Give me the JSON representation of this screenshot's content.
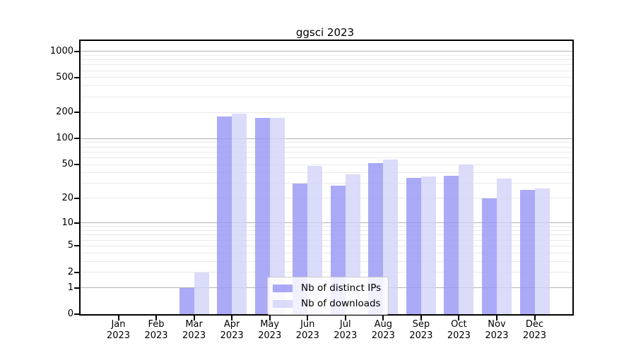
{
  "chart_data": {
    "type": "bar",
    "title": "ggsci 2023",
    "categories": [
      "Jan",
      "Feb",
      "Mar",
      "Apr",
      "May",
      "Jun",
      "Jul",
      "Aug",
      "Sep",
      "Oct",
      "Nov",
      "Dec"
    ],
    "x_tick_year": "2023",
    "series": [
      {
        "name": "Nb of distinct IPs",
        "color": "#9595f5",
        "values": [
          0,
          0,
          1,
          180,
          172,
          30,
          28,
          52,
          35,
          37,
          20,
          25
        ]
      },
      {
        "name": "Nb of downloads",
        "color": "#d2d2f9",
        "values": [
          0,
          0,
          2,
          192,
          172,
          48,
          38,
          57,
          36,
          50,
          34,
          26
        ]
      }
    ],
    "y_axis": {
      "scale": "log1p",
      "ticks": [
        0,
        1,
        2,
        5,
        10,
        20,
        50,
        100,
        200,
        500,
        1000
      ],
      "max_ref": 1000
    },
    "grid": {
      "major_at": [
        1,
        10,
        100,
        1000
      ],
      "major_color": "#b3b3b3",
      "minor_color": "#e9e9e9"
    },
    "legend": {
      "position": "bottom-center"
    },
    "bar_opacity": 0.8,
    "axis_color": "#000000",
    "background_color": "#ffffff"
  }
}
